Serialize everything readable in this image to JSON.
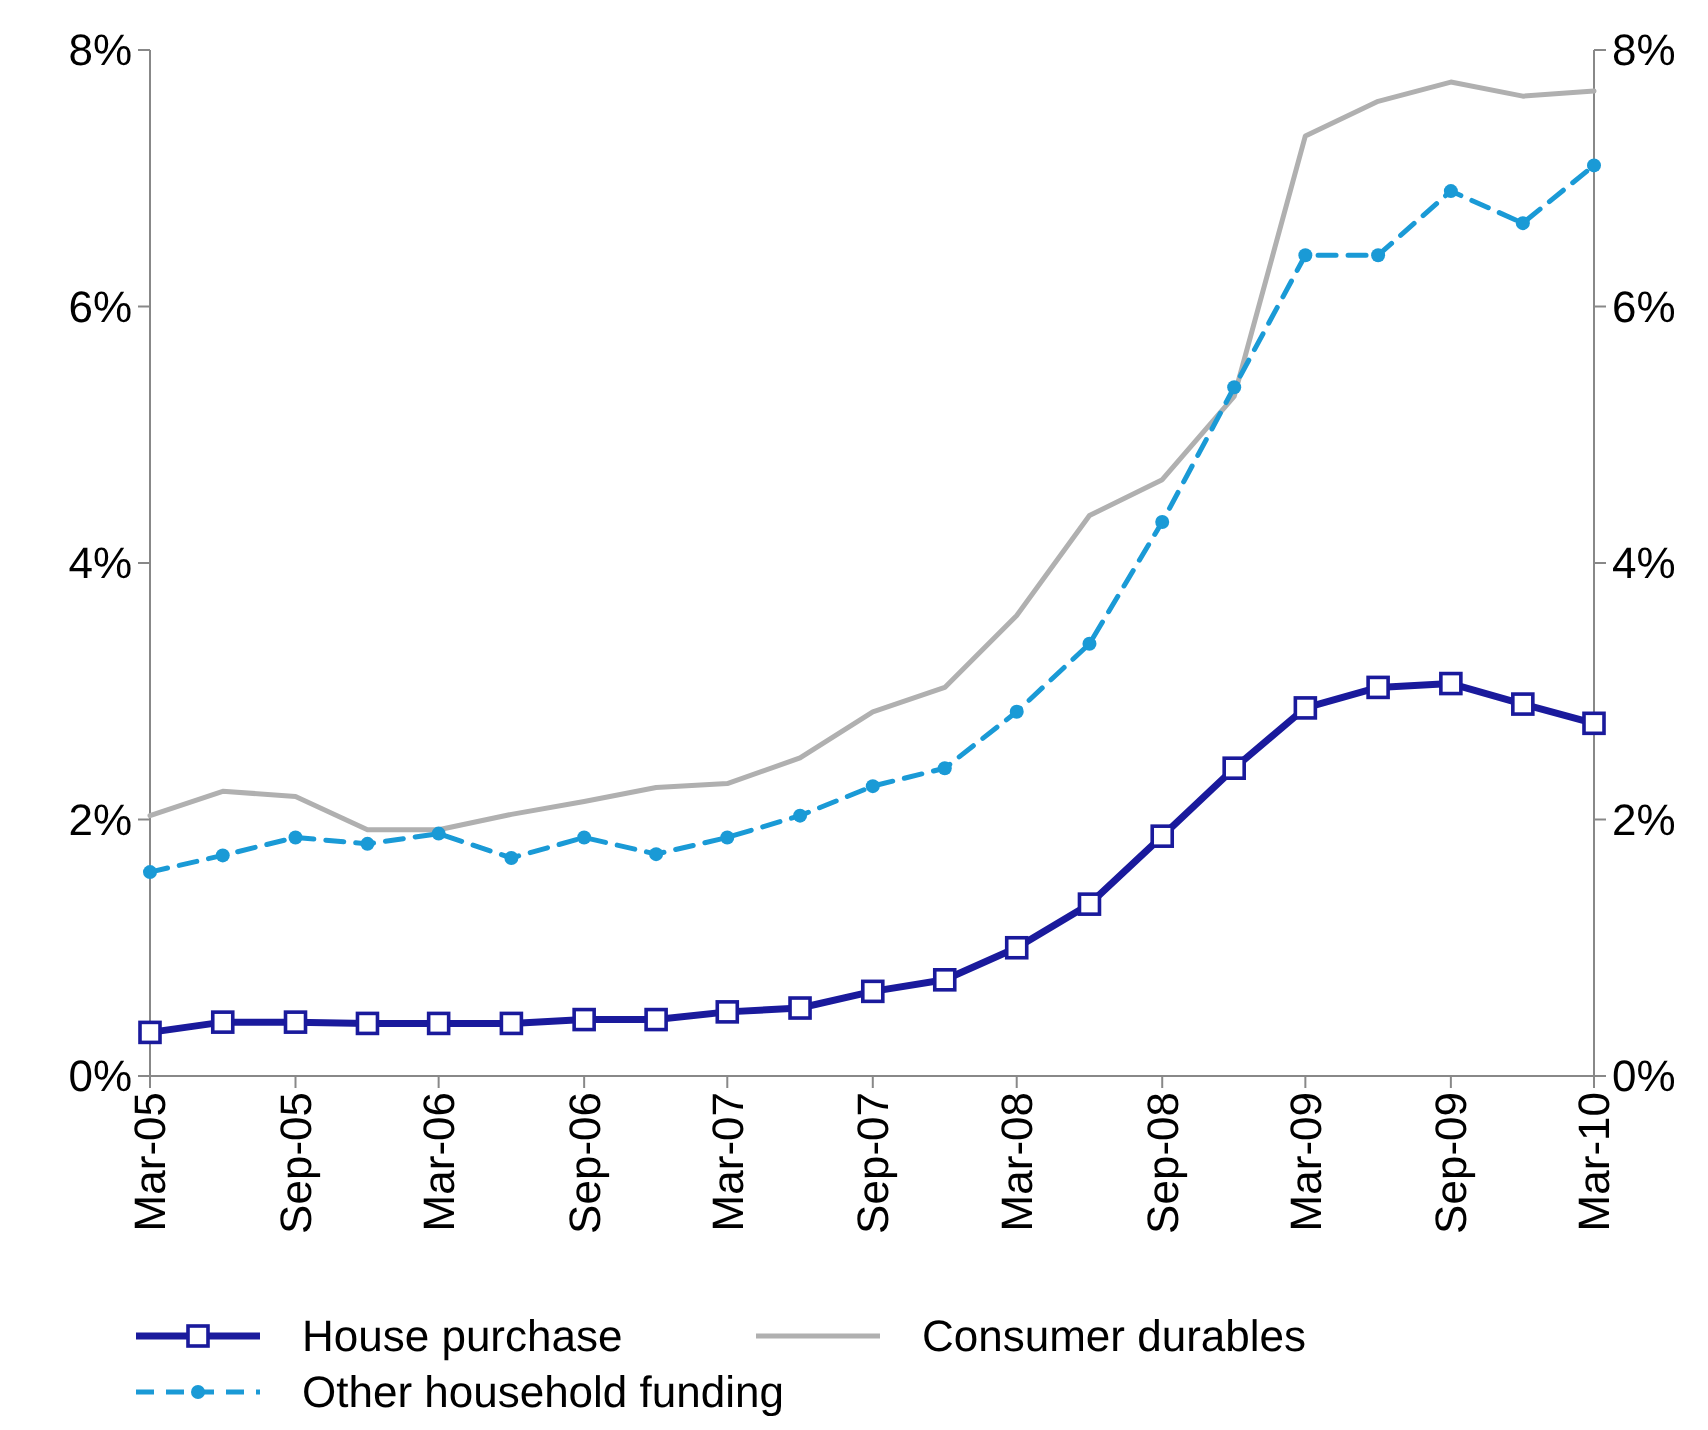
{
  "chart_data": {
    "type": "line",
    "x": [
      "2005-03",
      "2005-06",
      "2005-09",
      "2005-12",
      "2006-03",
      "2006-06",
      "2006-09",
      "2006-12",
      "2007-03",
      "2007-06",
      "2007-09",
      "2007-12",
      "2008-03",
      "2008-06",
      "2008-09",
      "2008-12",
      "2009-03",
      "2009-06",
      "2009-09",
      "2009-12",
      "2010-03"
    ],
    "series": [
      {
        "name": "House purchase",
        "color": "#1a1a9c",
        "marker": "square",
        "line_style": "solid",
        "values": [
          0.34,
          0.42,
          0.42,
          0.41,
          0.41,
          0.41,
          0.44,
          0.44,
          0.5,
          0.53,
          0.66,
          0.75,
          1.0,
          1.34,
          1.87,
          2.4,
          2.87,
          3.03,
          3.06,
          2.9,
          2.75
        ]
      },
      {
        "name": "Consumer durables",
        "color": "#b0b0b0",
        "marker": "none",
        "line_style": "solid",
        "values": [
          2.03,
          2.22,
          2.18,
          1.92,
          1.92,
          2.04,
          2.14,
          2.25,
          2.28,
          2.48,
          2.84,
          3.03,
          3.59,
          4.37,
          4.65,
          5.3,
          7.33,
          7.6,
          7.75,
          7.64,
          7.68
        ]
      },
      {
        "name": "Other household funding",
        "color": "#1a9ad6",
        "marker": "circle",
        "line_style": "dashed",
        "values": [
          1.59,
          1.72,
          1.86,
          1.81,
          1.89,
          1.7,
          1.86,
          1.73,
          1.86,
          2.03,
          2.26,
          2.4,
          2.84,
          3.37,
          4.32,
          5.37,
          6.4,
          6.4,
          6.9,
          6.65,
          7.1
        ]
      }
    ],
    "xlim": [
      "2005-03",
      "2010-03"
    ],
    "xticks": [
      {
        "value": "2005-03",
        "label": "Mar-05"
      },
      {
        "value": "2005-09",
        "label": "Sep-05"
      },
      {
        "value": "2006-03",
        "label": "Mar-06"
      },
      {
        "value": "2006-09",
        "label": "Sep-06"
      },
      {
        "value": "2007-03",
        "label": "Mar-07"
      },
      {
        "value": "2007-09",
        "label": "Sep-07"
      },
      {
        "value": "2008-03",
        "label": "Mar-08"
      },
      {
        "value": "2008-09",
        "label": "Sep-08"
      },
      {
        "value": "2009-03",
        "label": "Mar-09"
      },
      {
        "value": "2009-09",
        "label": "Sep-09"
      },
      {
        "value": "2010-03",
        "label": "Mar-10"
      }
    ],
    "ylim": [
      0,
      8
    ],
    "yticks": [
      {
        "value": 0,
        "label": "0%"
      },
      {
        "value": 2,
        "label": "2%"
      },
      {
        "value": 4,
        "label": "4%"
      },
      {
        "value": 6,
        "label": "6%"
      },
      {
        "value": 8,
        "label": "8%"
      }
    ],
    "y2lim": [
      0,
      8
    ],
    "y2ticks": [
      {
        "value": 0,
        "label": "0%"
      },
      {
        "value": 2,
        "label": "2%"
      },
      {
        "value": 4,
        "label": "4%"
      },
      {
        "value": 6,
        "label": "6%"
      },
      {
        "value": 8,
        "label": "8%"
      }
    ],
    "grid": false,
    "legend": "bottom"
  }
}
